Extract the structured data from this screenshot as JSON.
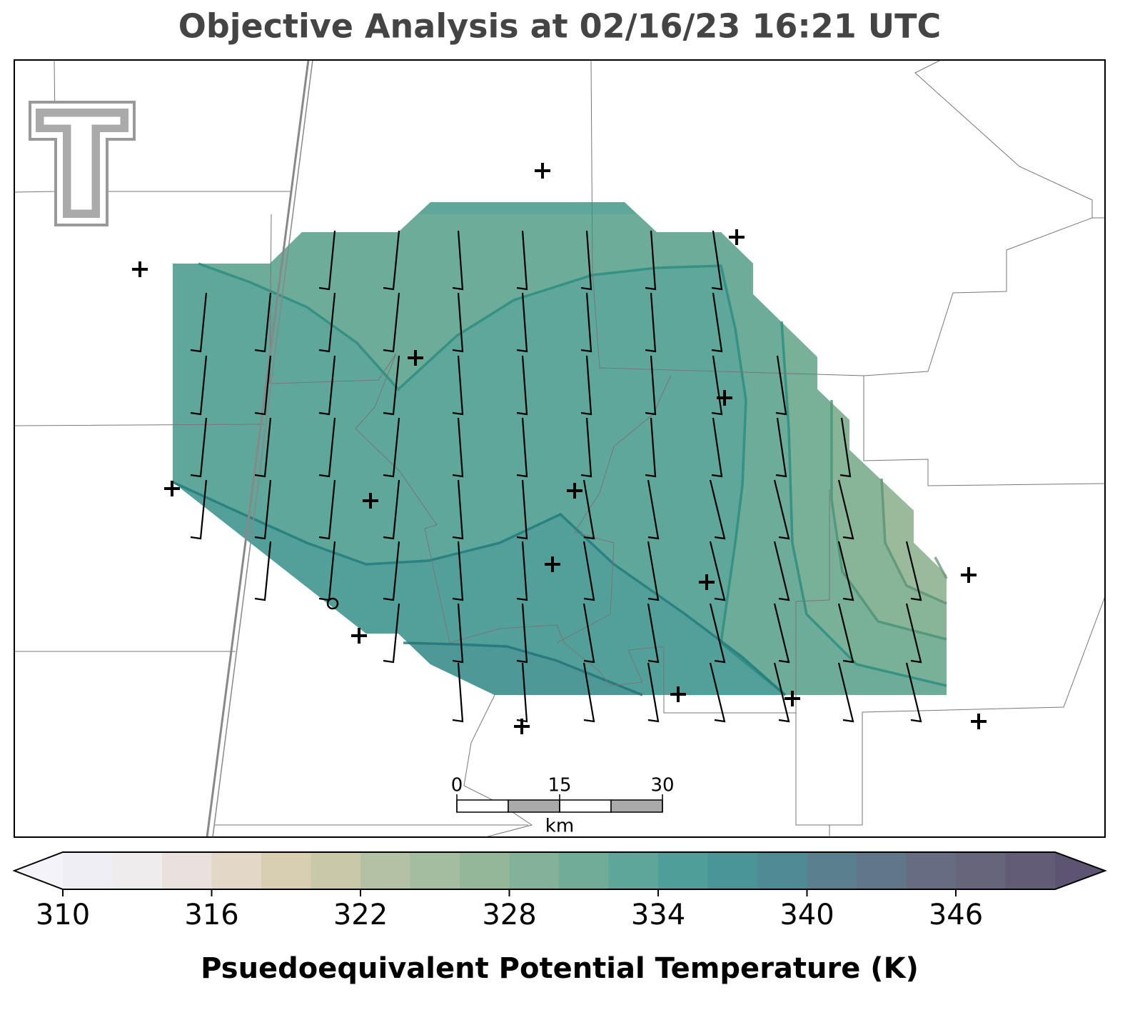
{
  "title": "Objective Analysis at 02/16/23 16:21 UTC",
  "colorbar": {
    "label": "Psuedoequivalent Potential Temperature (K)",
    "levels": [
      310,
      312,
      314,
      316,
      318,
      320,
      322,
      324,
      326,
      328,
      330,
      332,
      334,
      336,
      338,
      340,
      342,
      344,
      346,
      348,
      350
    ],
    "colors": [
      "#eeeef4",
      "#efecee",
      "#e8e1dd",
      "#e3d7c8",
      "#d8cfb2",
      "#c9c8a8",
      "#b5c1a5",
      "#a4bc9f",
      "#94b79a",
      "#83b299",
      "#70ac98",
      "#5fa69a",
      "#4f9e99",
      "#4a9697",
      "#508b95",
      "#5a808e",
      "#627689",
      "#666d83",
      "#66657c",
      "#635c76"
    ],
    "under_color": "#f3f3f9",
    "over_color": "#5c5470",
    "ticks": [
      310,
      316,
      322,
      328,
      334,
      340,
      346
    ]
  },
  "scale_bar": {
    "ticks": [
      0,
      15,
      30
    ],
    "unit": "km"
  }
}
